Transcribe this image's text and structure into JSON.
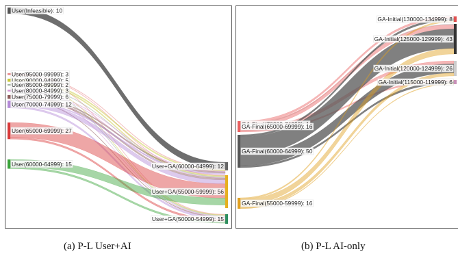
{
  "panels": [
    {
      "caption": "(a) P-L User+AI",
      "sources": [
        {
          "label": "User(Infeasible): 10",
          "value": 10,
          "color": "#555555"
        },
        {
          "label": "User(95000-99999): 3",
          "value": 3,
          "color": "#e88a8a"
        },
        {
          "label": "User(90000-94999): 5",
          "value": 5,
          "color": "#c8c83a"
        },
        {
          "label": "User(85000-89999): 2",
          "value": 2,
          "color": "#9fb39f"
        },
        {
          "label": "User(80000-84999): 3",
          "value": 3,
          "color": "#d79ad7"
        },
        {
          "label": "User(75000-79999): 6",
          "value": 6,
          "color": "#8c5a5a"
        },
        {
          "label": "User(70000-74999): 12",
          "value": 12,
          "color": "#b48ad8"
        },
        {
          "label": "User(65000-69999): 27",
          "value": 27,
          "color": "#d93a3a"
        },
        {
          "label": "User(60000-64999): 15",
          "value": 15,
          "color": "#3aa33a"
        }
      ],
      "targets": [
        {
          "label": "User+GA(60000-64999): 12",
          "value": 12,
          "color": "#666666"
        },
        {
          "label": "User+GA(55000-59999): 56",
          "value": 56,
          "color": "#e6b020"
        },
        {
          "label": "User+GA(50000-54999): 15",
          "value": 15,
          "color": "#2f8f5f"
        }
      ]
    },
    {
      "caption": "(b) P-L AI-only",
      "sources": [
        {
          "label": "GA-Final(70000-74999): 1",
          "value": 1,
          "color": "#bbbbbb"
        },
        {
          "label": "GA-Final(65000-69999): 16",
          "value": 16,
          "color": "#e86060"
        },
        {
          "label": "GA-Final(60000-64999): 50",
          "value": 50,
          "color": "#555555"
        },
        {
          "label": "GA-Final(55000-59999): 16",
          "value": 16,
          "color": "#e0a020"
        }
      ],
      "targets": [
        {
          "label": "GA-Initial(130000-134999): 8",
          "value": 8,
          "color": "#e05050"
        },
        {
          "label": "GA-Initial(125000-129999): 43",
          "value": 43,
          "color": "#333333"
        },
        {
          "label": "GA-Initial(120000-124999): 26",
          "value": 26,
          "color": "#cccccc"
        },
        {
          "label": "GA-Initial(115000-119999): 6",
          "value": 6,
          "color": "#c890b8"
        }
      ]
    }
  ]
}
